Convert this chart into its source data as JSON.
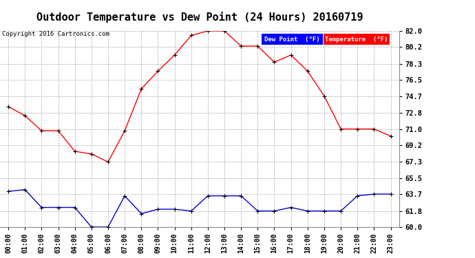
{
  "title": "Outdoor Temperature vs Dew Point (24 Hours) 20160719",
  "copyright": "Copyright 2016 Cartronics.com",
  "hours": [
    "00:00",
    "01:00",
    "02:00",
    "03:00",
    "04:00",
    "05:00",
    "06:00",
    "07:00",
    "08:00",
    "09:00",
    "10:00",
    "11:00",
    "12:00",
    "13:00",
    "14:00",
    "15:00",
    "16:00",
    "17:00",
    "18:00",
    "19:00",
    "20:00",
    "21:00",
    "22:00",
    "23:00"
  ],
  "temperature": [
    73.5,
    72.5,
    70.8,
    70.8,
    68.5,
    68.2,
    67.3,
    70.8,
    75.5,
    77.5,
    79.3,
    81.5,
    82.0,
    82.0,
    80.3,
    80.3,
    78.5,
    79.3,
    77.5,
    74.7,
    71.0,
    71.0,
    71.0,
    70.2
  ],
  "dew_point": [
    64.0,
    64.2,
    62.2,
    62.2,
    62.2,
    60.0,
    60.0,
    63.5,
    61.5,
    62.0,
    62.0,
    61.8,
    63.5,
    63.5,
    63.5,
    61.8,
    61.8,
    62.2,
    61.8,
    61.8,
    61.8,
    63.5,
    63.7,
    63.7
  ],
  "temp_color": "#ff0000",
  "dew_color": "#0000cc",
  "ylim_min": 60.0,
  "ylim_max": 82.0,
  "yticks": [
    60.0,
    61.8,
    63.7,
    65.5,
    67.3,
    69.2,
    71.0,
    72.8,
    74.7,
    76.5,
    78.3,
    80.2,
    82.0
  ],
  "bg_color": "#ffffff",
  "grid_color": "#aaaaaa",
  "title_fontsize": 11,
  "legend_dew_bg": "#0000ff",
  "legend_temp_bg": "#ff0000",
  "legend_text_color": "#ffffff"
}
